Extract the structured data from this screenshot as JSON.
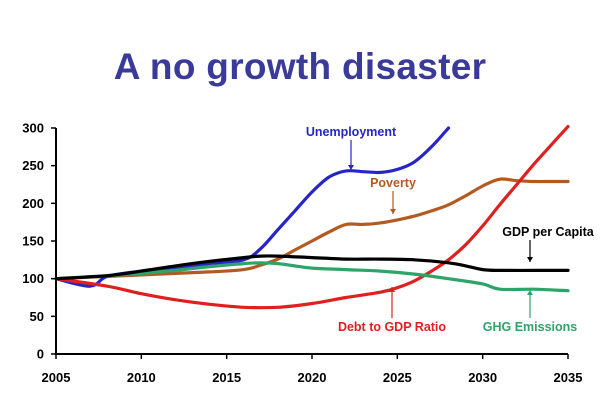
{
  "title": "A no growth disaster",
  "chart_data": {
    "type": "line",
    "title": "A no growth disaster",
    "xlim": [
      2005,
      2035
    ],
    "ylim": [
      0,
      300
    ],
    "x_ticks": [
      "2005",
      "2010",
      "2015",
      "2020",
      "2025",
      "2030",
      "2035"
    ],
    "y_ticks": [
      "0",
      "50",
      "100",
      "150",
      "200",
      "250",
      "300"
    ],
    "grid": false,
    "series": [
      {
        "name": "Unemployment",
        "color": "#2626c8",
        "x": [
          2005,
          2007,
          2008,
          2010,
          2012,
          2014,
          2016,
          2017,
          2018,
          2019,
          2020,
          2021,
          2022,
          2023,
          2024,
          2025,
          2026,
          2027,
          2028
        ],
        "y": [
          100,
          90,
          103,
          110,
          115,
          120,
          125,
          140,
          165,
          190,
          215,
          235,
          243,
          242,
          241,
          245,
          255,
          275,
          300
        ]
      },
      {
        "name": "Poverty",
        "color": "#b35a22",
        "x": [
          2005,
          2008,
          2010,
          2012,
          2014,
          2016,
          2017,
          2018,
          2019,
          2020,
          2021,
          2022,
          2023,
          2024,
          2025,
          2026,
          2027,
          2028,
          2029,
          2030,
          2031,
          2032,
          2033,
          2034,
          2035
        ],
        "y": [
          100,
          103,
          105,
          107,
          109,
          112,
          118,
          126,
          138,
          150,
          162,
          172,
          172,
          174,
          178,
          183,
          190,
          198,
          210,
          223,
          232,
          230,
          229,
          229,
          229
        ]
      },
      {
        "name": "GDP per Capita",
        "color": "#000000",
        "x": [
          2005,
          2008,
          2010,
          2012,
          2014,
          2016,
          2017,
          2018,
          2020,
          2022,
          2024,
          2026,
          2028,
          2029,
          2030,
          2031,
          2033,
          2035
        ],
        "y": [
          100,
          104,
          110,
          117,
          123,
          128,
          130,
          130,
          128,
          126,
          126,
          125,
          121,
          117,
          112,
          111,
          111,
          111
        ]
      },
      {
        "name": "Debt to GDP Ratio",
        "color": "#e02020",
        "x": [
          2005,
          2008,
          2010,
          2012,
          2014,
          2016,
          2018,
          2020,
          2022,
          2024,
          2025,
          2026,
          2027,
          2028,
          2029,
          2030,
          2031,
          2032,
          2033,
          2034,
          2035
        ],
        "y": [
          100,
          90,
          80,
          72,
          66,
          62,
          62,
          67,
          75,
          82,
          88,
          97,
          110,
          125,
          145,
          170,
          198,
          225,
          252,
          277,
          302
        ]
      },
      {
        "name": "GHG Emissions",
        "color": "#2ea36a",
        "x": [
          2005,
          2008,
          2010,
          2012,
          2014,
          2016,
          2017,
          2018,
          2019,
          2020,
          2022,
          2024,
          2026,
          2028,
          2030,
          2031,
          2033,
          2035
        ],
        "y": [
          100,
          104,
          107,
          111,
          116,
          120,
          121,
          120,
          117,
          114,
          112,
          110,
          106,
          100,
          93,
          86,
          86,
          84
        ]
      }
    ],
    "annotations": [
      {
        "text": "Unemployment",
        "series": "Unemployment"
      },
      {
        "text": "Poverty",
        "series": "Poverty"
      },
      {
        "text": "GDP per Capita",
        "series": "GDP per Capita"
      },
      {
        "text": "Debt to GDP Ratio",
        "series": "Debt to GDP Ratio"
      },
      {
        "text": "GHG Emissions",
        "series": "GHG Emissions"
      }
    ]
  }
}
